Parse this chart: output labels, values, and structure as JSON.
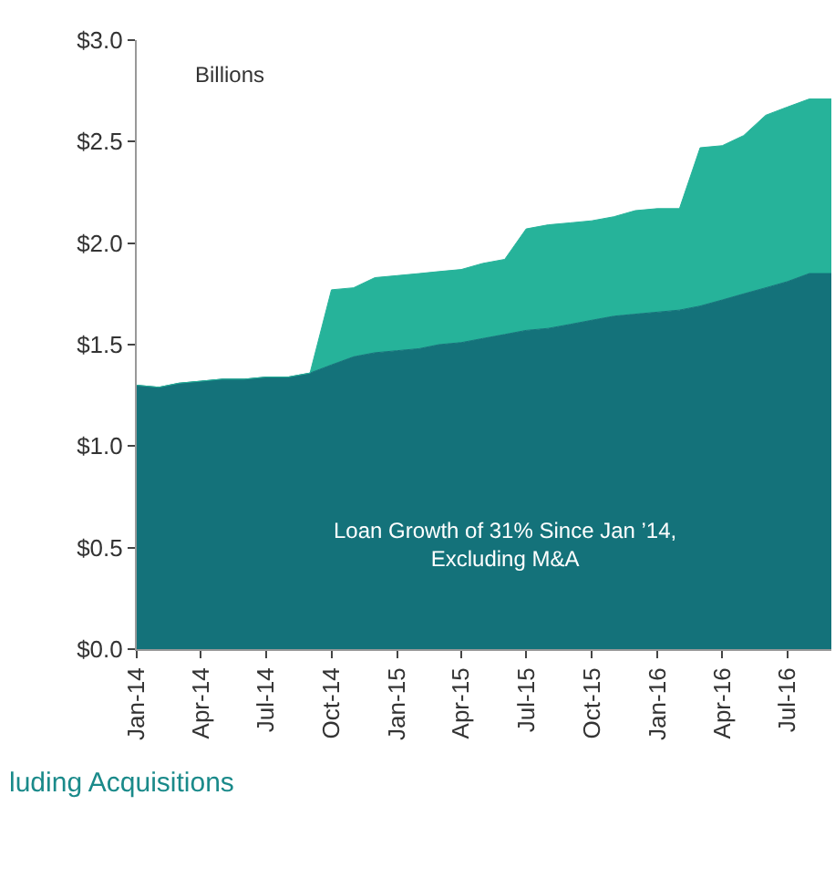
{
  "chart_data": {
    "type": "area",
    "stacked": true,
    "x": [
      "2014-01",
      "2014-02",
      "2014-03",
      "2014-04",
      "2014-05",
      "2014-06",
      "2014-07",
      "2014-08",
      "2014-09",
      "2014-10",
      "2014-11",
      "2014-12",
      "2015-01",
      "2015-02",
      "2015-03",
      "2015-04",
      "2015-05",
      "2015-06",
      "2015-07",
      "2015-08",
      "2015-09",
      "2015-10",
      "2015-11",
      "2015-12",
      "2016-01",
      "2016-02",
      "2016-03",
      "2016-04",
      "2016-05",
      "2016-06",
      "2016-07",
      "2016-08",
      "2016-09"
    ],
    "series": [
      {
        "color": "#14727a",
        "values": [
          1.3,
          1.29,
          1.31,
          1.32,
          1.33,
          1.33,
          1.34,
          1.34,
          1.36,
          1.4,
          1.44,
          1.46,
          1.47,
          1.48,
          1.5,
          1.51,
          1.53,
          1.55,
          1.57,
          1.58,
          1.6,
          1.62,
          1.64,
          1.65,
          1.66,
          1.67,
          1.69,
          1.72,
          1.75,
          1.78,
          1.81,
          1.85,
          1.85
        ]
      },
      {
        "color": "#26b39a",
        "values": [
          0,
          0,
          0,
          0,
          0,
          0,
          0,
          0,
          0,
          0.37,
          0.34,
          0.37,
          0.37,
          0.37,
          0.36,
          0.36,
          0.37,
          0.37,
          0.5,
          0.51,
          0.5,
          0.49,
          0.49,
          0.51,
          0.51,
          0.5,
          0.78,
          0.76,
          0.78,
          0.85,
          0.86,
          0.86,
          0.86
        ]
      }
    ],
    "xlim": [
      "2014-01",
      "2016-09"
    ],
    "xticks": [
      {
        "value": "2014-01",
        "label": "Jan-14"
      },
      {
        "value": "2014-04",
        "label": "Apr-14"
      },
      {
        "value": "2014-07",
        "label": "Jul-14"
      },
      {
        "value": "2014-10",
        "label": "Oct-14"
      },
      {
        "value": "2015-01",
        "label": "Jan-15"
      },
      {
        "value": "2015-04",
        "label": "Apr-15"
      },
      {
        "value": "2015-07",
        "label": "Jul-15"
      },
      {
        "value": "2015-10",
        "label": "Oct-15"
      },
      {
        "value": "2016-01",
        "label": "Jan-16"
      },
      {
        "value": "2016-04",
        "label": "Apr-16"
      },
      {
        "value": "2016-07",
        "label": "Jul-16"
      }
    ],
    "ylim": [
      0,
      3.0
    ],
    "yticks": [
      {
        "value": 0,
        "label": "$0.0"
      },
      {
        "value": 0.5,
        "label": "$0.5"
      },
      {
        "value": 1.0,
        "label": "$1.0"
      },
      {
        "value": 1.5,
        "label": "$1.5"
      },
      {
        "value": 2.0,
        "label": "$2.0"
      },
      {
        "value": 2.5,
        "label": "$2.5"
      },
      {
        "value": 3.0,
        "label": "$3.0"
      }
    ],
    "annotations": [
      "Billions",
      "Loan Growth of 31% Since Jan ’14,\nExcluding M&A",
      "luding Acquisitions"
    ]
  }
}
